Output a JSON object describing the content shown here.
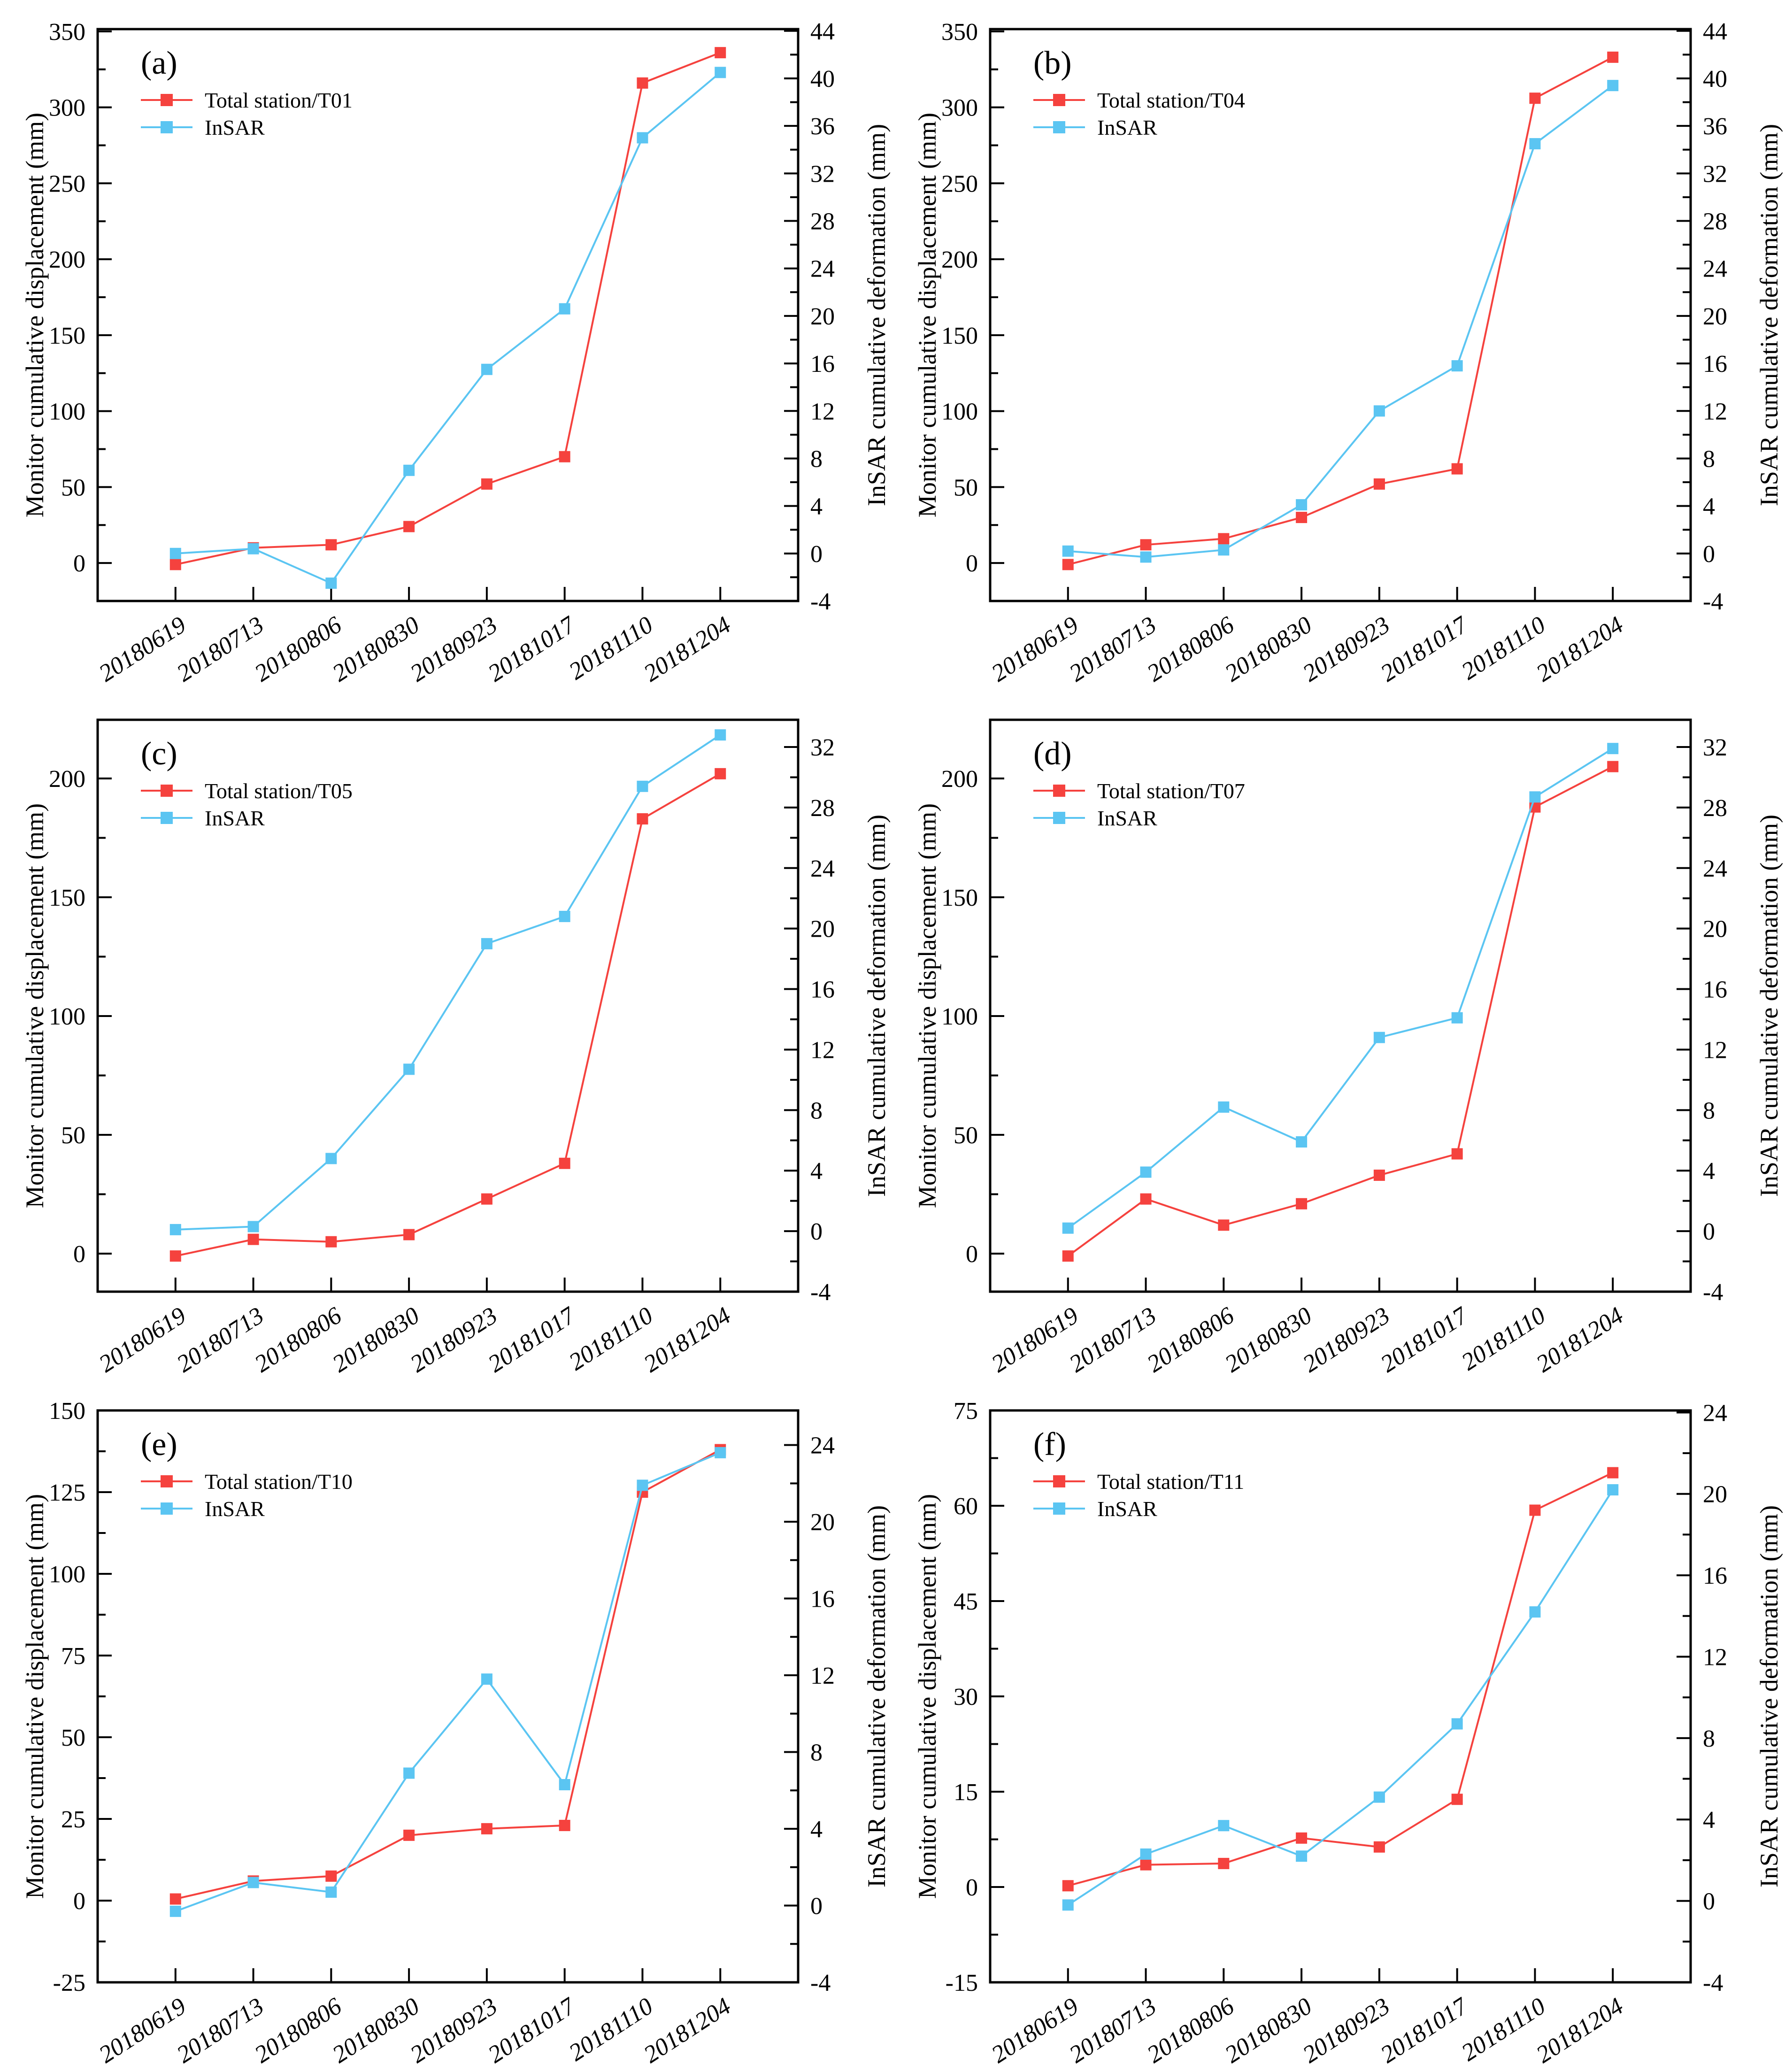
{
  "figure": {
    "background": "#ffffff",
    "axis_color": "#000000",
    "series_colors": {
      "total_station": "#f5423e",
      "insar": "#5bc5f2"
    }
  },
  "chart_data": [
    {
      "type": "line",
      "panel_label": "(a)",
      "categories": [
        "20180619",
        "20180713",
        "20180806",
        "20180830",
        "20180923",
        "20181017",
        "20181110",
        "20181204"
      ],
      "left_axis": {
        "label": "Monitor cumulative displacement (mm)",
        "ticks": [
          0,
          50,
          100,
          150,
          200,
          250,
          300,
          350
        ],
        "range": [
          -25,
          351.5
        ]
      },
      "right_axis": {
        "label": "InSAR cumulative deformation (mm)",
        "ticks": [
          -4,
          0,
          4,
          8,
          12,
          16,
          20,
          24,
          28,
          32,
          36,
          40,
          44
        ],
        "range": [
          -4,
          44.15
        ]
      },
      "series": [
        {
          "name": "Total station/T01",
          "axis": "left",
          "color": "#f5423e",
          "values": [
            -1,
            10,
            12,
            24,
            52,
            70,
            316,
            336
          ]
        },
        {
          "name": "InSAR",
          "axis": "right",
          "color": "#5bc5f2",
          "values": [
            0,
            0.4,
            -2.5,
            7,
            15.5,
            20.6,
            35,
            40.5
          ]
        }
      ]
    },
    {
      "type": "line",
      "panel_label": "(b)",
      "categories": [
        "20180619",
        "20180713",
        "20180806",
        "20180830",
        "20180923",
        "20181017",
        "20181110",
        "20181204"
      ],
      "left_axis": {
        "label": "Monitor cumulative displacement (mm)",
        "ticks": [
          0,
          50,
          100,
          150,
          200,
          250,
          300,
          350
        ],
        "range": [
          -25,
          351.5
        ]
      },
      "right_axis": {
        "label": "InSAR cumulative deformation (mm)",
        "ticks": [
          -4,
          0,
          4,
          8,
          12,
          16,
          20,
          24,
          28,
          32,
          36,
          40,
          44
        ],
        "range": [
          -4,
          44.15
        ]
      },
      "series": [
        {
          "name": "Total station/T04",
          "axis": "left",
          "color": "#f5423e",
          "values": [
            -1,
            12,
            16,
            30,
            52,
            62,
            306,
            333
          ]
        },
        {
          "name": "InSAR",
          "axis": "right",
          "color": "#5bc5f2",
          "values": [
            0.2,
            -0.3,
            0.3,
            4.1,
            12,
            15.8,
            34.5,
            39.4
          ]
        }
      ]
    },
    {
      "type": "line",
      "panel_label": "(c)",
      "categories": [
        "20180619",
        "20180713",
        "20180806",
        "20180830",
        "20180923",
        "20181017",
        "20181110",
        "20181204"
      ],
      "left_axis": {
        "label": "Monitor cumulative displacement (mm)",
        "ticks": [
          0,
          50,
          100,
          150,
          200
        ],
        "range": [
          -16,
          224.7
        ]
      },
      "right_axis": {
        "label": "InSAR cumulative deformation (mm)",
        "ticks": [
          -4,
          0,
          4,
          8,
          12,
          16,
          20,
          24,
          28,
          32
        ],
        "range": [
          -4,
          33.8
        ]
      },
      "series": [
        {
          "name": "Total station/T05",
          "axis": "left",
          "color": "#f5423e",
          "values": [
            -1,
            6,
            5,
            8,
            23,
            38,
            183,
            202
          ]
        },
        {
          "name": "InSAR",
          "axis": "right",
          "color": "#5bc5f2",
          "values": [
            0.1,
            0.3,
            4.8,
            10.7,
            19,
            20.8,
            29.4,
            32.8
          ]
        }
      ]
    },
    {
      "type": "line",
      "panel_label": "(d)",
      "categories": [
        "20180619",
        "20180713",
        "20180806",
        "20180830",
        "20180923",
        "20181017",
        "20181110",
        "20181204"
      ],
      "left_axis": {
        "label": "Monitor cumulative displacement (mm)",
        "ticks": [
          0,
          50,
          100,
          150,
          200
        ],
        "range": [
          -16,
          224.7
        ]
      },
      "right_axis": {
        "label": "InSAR cumulative deformation (mm)",
        "ticks": [
          -4,
          0,
          4,
          8,
          12,
          16,
          20,
          24,
          28,
          32
        ],
        "range": [
          -4,
          33.8
        ]
      },
      "series": [
        {
          "name": "Total station/T07",
          "axis": "left",
          "color": "#f5423e",
          "values": [
            -1,
            23,
            12,
            21,
            33,
            42,
            188,
            205
          ]
        },
        {
          "name": "InSAR",
          "axis": "right",
          "color": "#5bc5f2",
          "values": [
            0.2,
            3.9,
            8.2,
            5.9,
            12.8,
            14.1,
            28.7,
            31.9
          ]
        }
      ]
    },
    {
      "type": "line",
      "panel_label": "(e)",
      "categories": [
        "20180619",
        "20180713",
        "20180806",
        "20180830",
        "20180923",
        "20181017",
        "20181110",
        "20181204"
      ],
      "left_axis": {
        "label": "Monitor cumulative displacement (mm)",
        "ticks": [
          -25,
          0,
          25,
          50,
          75,
          100,
          125,
          150
        ],
        "range": [
          -25,
          150
        ]
      },
      "right_axis": {
        "label": "InSAR cumulative deformation (mm)",
        "ticks": [
          -4,
          0,
          4,
          8,
          12,
          16,
          20,
          24
        ],
        "range": [
          -4,
          25.8
        ]
      },
      "series": [
        {
          "name": "Total station/T10",
          "axis": "left",
          "color": "#f5423e",
          "values": [
            0.5,
            6,
            7.5,
            20,
            22,
            23,
            125,
            138
          ]
        },
        {
          "name": "InSAR",
          "axis": "right",
          "color": "#5bc5f2",
          "values": [
            -0.3,
            1.2,
            0.7,
            6.9,
            11.8,
            6.3,
            21.9,
            23.6
          ]
        }
      ]
    },
    {
      "type": "line",
      "panel_label": "(f)",
      "categories": [
        "20180619",
        "20180713",
        "20180806",
        "20180830",
        "20180923",
        "20181017",
        "20181110",
        "20181204"
      ],
      "left_axis": {
        "label": "Monitor cumulative displacement (mm)",
        "ticks": [
          -15,
          0,
          15,
          30,
          45,
          60,
          75
        ],
        "range": [
          -15,
          75
        ]
      },
      "right_axis": {
        "label": "InSAR cumulative deformation (mm)",
        "ticks": [
          -4,
          0,
          4,
          8,
          12,
          16,
          20,
          24
        ],
        "range": [
          -4,
          24.1
        ]
      },
      "series": [
        {
          "name": "Total station/T11",
          "axis": "left",
          "color": "#f5423e",
          "values": [
            0.2,
            3.5,
            3.7,
            7.7,
            6.3,
            13.8,
            59.3,
            65.2
          ]
        },
        {
          "name": "InSAR",
          "axis": "right",
          "color": "#5bc5f2",
          "values": [
            -0.2,
            2.3,
            3.7,
            2.2,
            5.1,
            8.7,
            14.2,
            20.2
          ]
        }
      ]
    }
  ]
}
